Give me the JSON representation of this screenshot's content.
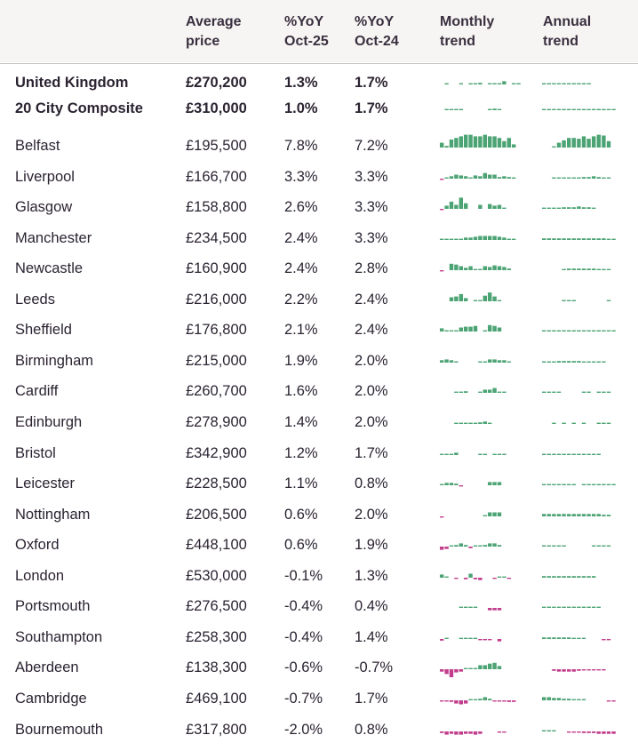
{
  "colors": {
    "positive": "#4ca374",
    "negative": "#c23e8d",
    "header_bg": "#f6f5f3"
  },
  "header": {
    "location": "",
    "avg_price": [
      "Average",
      "price"
    ],
    "yoy_oct25": [
      "%YoY",
      "Oct-25"
    ],
    "yoy_oct24": [
      "%YoY",
      "Oct-24"
    ],
    "monthly_trend": [
      "Monthly",
      "trend"
    ],
    "annual_trend": [
      "Annual",
      "trend"
    ]
  },
  "rows": [
    {
      "name": "United Kingdom",
      "price": "£270,200",
      "yoy_oct25": "1.3%",
      "yoy_oct24": "1.7%",
      "bold": true,
      "monthly": [
        0,
        1,
        0,
        0,
        1,
        0,
        1,
        1,
        2,
        0,
        1,
        1,
        1,
        4,
        0,
        1,
        1,
        0
      ],
      "annual": [
        1,
        1,
        1,
        1,
        1,
        1,
        1,
        1,
        1,
        1,
        0,
        0,
        0,
        0,
        0
      ]
    },
    {
      "name": "20 City Composite",
      "price": "£310,000",
      "yoy_oct25": "1.0%",
      "yoy_oct24": "1.7%",
      "bold": true,
      "monthly": [
        0,
        1,
        1,
        1,
        1,
        0,
        0,
        0,
        0,
        0,
        1,
        2,
        1,
        0,
        0,
        0,
        0,
        0
      ],
      "annual": [
        1,
        1,
        1,
        1,
        1,
        1,
        1,
        1,
        1,
        1,
        1,
        1,
        1,
        1,
        1
      ]
    },
    {
      "name": "Belfast",
      "price": "£195,500",
      "yoy_oct25": "7.8%",
      "yoy_oct24": "7.2%",
      "monthly": [
        6,
        2,
        10,
        12,
        14,
        16,
        16,
        14,
        14,
        16,
        14,
        14,
        12,
        8,
        12,
        4,
        0,
        0
      ],
      "annual": [
        0,
        0,
        1,
        6,
        9,
        12,
        12,
        11,
        14,
        11,
        14,
        16,
        15,
        8,
        0
      ]
    },
    {
      "name": "Liverpool",
      "price": "£166,700",
      "yoy_oct25": "3.3%",
      "yoy_oct24": "3.3%",
      "monthly": [
        -1,
        1,
        3,
        5,
        4,
        3,
        1,
        4,
        3,
        7,
        5,
        5,
        2,
        3,
        2,
        1,
        0,
        0
      ],
      "annual": [
        0,
        0,
        1,
        1,
        1,
        1,
        1,
        1,
        2,
        2,
        3,
        2,
        1,
        1,
        0
      ]
    },
    {
      "name": "Glasgow",
      "price": "£158,800",
      "yoy_oct25": "2.6%",
      "yoy_oct24": "3.3%",
      "monthly": [
        -1,
        4,
        9,
        5,
        14,
        7,
        0,
        0,
        5,
        0,
        6,
        4,
        5,
        1,
        0,
        0,
        0,
        0
      ],
      "annual": [
        1,
        1,
        1,
        1,
        2,
        2,
        2,
        3,
        2,
        2,
        1,
        0,
        0,
        0,
        0
      ]
    },
    {
      "name": "Manchester",
      "price": "£234,500",
      "yoy_oct25": "2.4%",
      "yoy_oct24": "3.3%",
      "monthly": [
        1,
        1,
        1,
        1,
        1,
        3,
        3,
        4,
        5,
        5,
        5,
        5,
        4,
        3,
        1,
        1,
        0,
        0
      ],
      "annual": [
        2,
        2,
        2,
        2,
        2,
        2,
        2,
        2,
        2,
        2,
        2,
        2,
        2,
        1,
        1
      ]
    },
    {
      "name": "Newcastle",
      "price": "£160,900",
      "yoy_oct25": "2.4%",
      "yoy_oct24": "2.8%",
      "monthly": [
        -1,
        0,
        8,
        7,
        5,
        3,
        5,
        1,
        1,
        5,
        4,
        6,
        5,
        4,
        2,
        0,
        0,
        0
      ],
      "annual": [
        0,
        0,
        0,
        0,
        1,
        2,
        2,
        2,
        2,
        2,
        2,
        1,
        1,
        1,
        0
      ]
    },
    {
      "name": "Leeds",
      "price": "£216,000",
      "yoy_oct25": "2.2%",
      "yoy_oct24": "2.4%",
      "monthly": [
        0,
        0,
        5,
        6,
        9,
        4,
        0,
        1,
        1,
        7,
        11,
        6,
        1,
        0,
        0,
        0,
        0,
        0
      ],
      "annual": [
        0,
        0,
        0,
        0,
        1,
        1,
        1,
        0,
        0,
        0,
        0,
        0,
        0,
        1,
        0
      ]
    },
    {
      "name": "Sheffield",
      "price": "£176,800",
      "yoy_oct25": "2.1%",
      "yoy_oct24": "2.4%",
      "monthly": [
        4,
        1,
        1,
        1,
        5,
        6,
        6,
        7,
        0,
        1,
        8,
        7,
        5,
        0,
        0,
        0,
        0,
        0
      ],
      "annual": [
        1,
        1,
        1,
        1,
        1,
        1,
        1,
        1,
        1,
        1,
        1,
        1,
        1,
        1,
        1
      ]
    },
    {
      "name": "Birmingham",
      "price": "£215,000",
      "yoy_oct25": "1.9%",
      "yoy_oct24": "2.0%",
      "monthly": [
        3,
        4,
        3,
        1,
        0,
        0,
        0,
        0,
        1,
        1,
        4,
        4,
        3,
        3,
        1,
        0,
        0,
        0
      ],
      "annual": [
        1,
        1,
        1,
        2,
        2,
        2,
        2,
        2,
        1,
        1,
        1,
        1,
        1,
        0,
        0
      ]
    },
    {
      "name": "Cardiff",
      "price": "£260,700",
      "yoy_oct25": "1.6%",
      "yoy_oct24": "2.0%",
      "monthly": [
        0,
        0,
        0,
        1,
        1,
        2,
        0,
        0,
        1,
        4,
        4,
        6,
        1,
        1,
        0,
        0,
        0,
        0
      ],
      "annual": [
        1,
        1,
        1,
        1,
        0,
        0,
        0,
        0,
        1,
        1,
        0,
        1,
        1,
        1,
        0
      ]
    },
    {
      "name": "Edinburgh",
      "price": "£278,900",
      "yoy_oct25": "1.4%",
      "yoy_oct24": "2.0%",
      "monthly": [
        0,
        0,
        0,
        1,
        1,
        1,
        1,
        1,
        2,
        3,
        1,
        0,
        0,
        0,
        0,
        0,
        0,
        0
      ],
      "annual": [
        0,
        0,
        1,
        0,
        1,
        0,
        1,
        0,
        1,
        0,
        0,
        1,
        1,
        1,
        0
      ]
    },
    {
      "name": "Bristol",
      "price": "£342,900",
      "yoy_oct25": "1.2%",
      "yoy_oct24": "1.7%",
      "monthly": [
        1,
        1,
        1,
        3,
        0,
        0,
        0,
        0,
        1,
        1,
        0,
        1,
        1,
        1,
        0,
        0,
        0,
        0
      ],
      "annual": [
        1,
        1,
        1,
        1,
        1,
        1,
        1,
        1,
        1,
        1,
        1,
        1,
        0,
        0,
        0
      ]
    },
    {
      "name": "Leicester",
      "price": "£228,500",
      "yoy_oct25": "1.1%",
      "yoy_oct24": "0.8%",
      "monthly": [
        1,
        3,
        3,
        2,
        -1,
        0,
        0,
        0,
        0,
        0,
        4,
        4,
        4,
        0,
        0,
        0,
        0,
        0
      ],
      "annual": [
        1,
        1,
        1,
        1,
        1,
        1,
        1,
        0,
        1,
        1,
        1,
        1,
        1,
        1,
        1
      ]
    },
    {
      "name": "Nottingham",
      "price": "£206,500",
      "yoy_oct25": "0.6%",
      "yoy_oct24": "2.0%",
      "monthly": [
        -1,
        0,
        0,
        0,
        0,
        0,
        0,
        0,
        0,
        1,
        5,
        5,
        5,
        0,
        0,
        0,
        0,
        0
      ],
      "annual": [
        3,
        3,
        3,
        3,
        3,
        3,
        3,
        3,
        3,
        3,
        3,
        3,
        2,
        2,
        0
      ]
    },
    {
      "name": "Oxford",
      "price": "£448,100",
      "yoy_oct25": "0.6%",
      "yoy_oct24": "1.9%",
      "monthly": [
        -4,
        -3,
        1,
        2,
        4,
        2,
        -2,
        1,
        1,
        2,
        4,
        4,
        2,
        0,
        0,
        0,
        0,
        0
      ],
      "annual": [
        1,
        1,
        1,
        1,
        1,
        0,
        0,
        0,
        0,
        0,
        1,
        1,
        1,
        1,
        0
      ]
    },
    {
      "name": "London",
      "price": "£530,000",
      "yoy_oct25": "-0.1%",
      "yoy_oct24": "1.3%",
      "monthly": [
        4,
        1,
        0,
        -1,
        0,
        -2,
        5,
        -2,
        -3,
        0,
        0,
        -1,
        1,
        1,
        -1,
        0,
        0,
        0
      ],
      "annual": [
        2,
        2,
        2,
        2,
        2,
        2,
        2,
        2,
        2,
        2,
        2,
        0,
        0,
        0,
        0
      ]
    },
    {
      "name": "Portsmouth",
      "price": "£276,500",
      "yoy_oct25": "-0.4%",
      "yoy_oct24": "0.4%",
      "monthly": [
        0,
        0,
        0,
        0,
        1,
        1,
        1,
        1,
        0,
        0,
        -3,
        -3,
        -3,
        0,
        0,
        0,
        0,
        0
      ],
      "annual": [
        1,
        1,
        1,
        1,
        1,
        1,
        1,
        1,
        1,
        1,
        1,
        1,
        0,
        0,
        0
      ]
    },
    {
      "name": "Southampton",
      "price": "£258,300",
      "yoy_oct25": "-0.4%",
      "yoy_oct24": "1.4%",
      "monthly": [
        -2,
        1,
        0,
        0,
        1,
        1,
        1,
        1,
        -1,
        -1,
        -1,
        0,
        -3,
        0,
        0,
        0,
        0,
        0
      ],
      "annual": [
        2,
        2,
        2,
        2,
        2,
        2,
        1,
        1,
        1,
        0,
        0,
        0,
        -1,
        -1,
        0
      ]
    },
    {
      "name": "Aberdeen",
      "price": "£138,300",
      "yoy_oct25": "-0.6%",
      "yoy_oct24": "-0.7%",
      "monthly": [
        -3,
        -6,
        -10,
        -4,
        -3,
        1,
        1,
        1,
        5,
        5,
        7,
        8,
        4,
        0,
        0,
        0,
        0,
        0
      ],
      "annual": [
        0,
        0,
        -2,
        -3,
        -3,
        -3,
        -3,
        -2,
        -1,
        -1,
        -1,
        -1,
        -1,
        0,
        0
      ]
    },
    {
      "name": "Cambridge",
      "price": "£469,100",
      "yoy_oct25": "-0.7%",
      "yoy_oct24": "1.7%",
      "monthly": [
        -1,
        -1,
        -2,
        -4,
        -5,
        -4,
        1,
        1,
        2,
        4,
        2,
        -1,
        -1,
        -1,
        -2,
        -2,
        0,
        0
      ],
      "annual": [
        4,
        4,
        3,
        3,
        2,
        2,
        1,
        1,
        1,
        0,
        0,
        0,
        0,
        -1,
        -1
      ]
    },
    {
      "name": "Bournemouth",
      "price": "£317,800",
      "yoy_oct25": "-2.0%",
      "yoy_oct24": "0.8%",
      "monthly": [
        -2,
        -4,
        -3,
        -4,
        -4,
        -3,
        -3,
        -4,
        -3,
        0,
        0,
        0,
        -1,
        -1,
        0,
        0,
        0,
        0
      ],
      "annual": [
        1,
        1,
        1,
        0,
        0,
        -1,
        -1,
        -1,
        -2,
        -2,
        -2,
        -3,
        -3,
        -3,
        -3
      ]
    }
  ]
}
